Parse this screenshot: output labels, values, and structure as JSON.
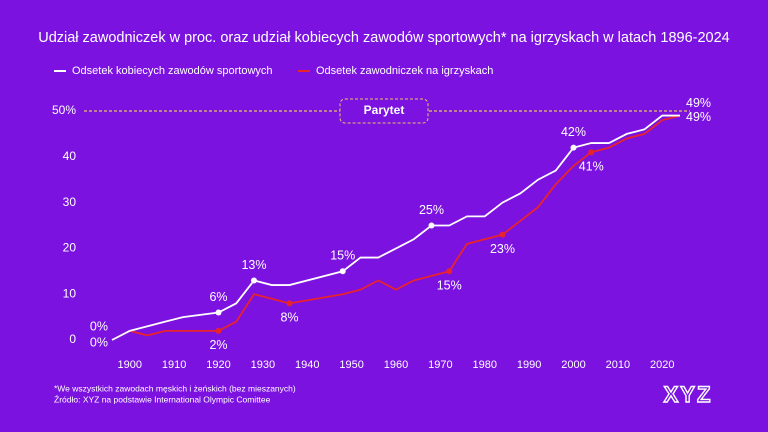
{
  "chart_data": {
    "type": "line",
    "title": "Udział zawodniczek w proc. oraz udział kobiecych zawodów sportowych* na igrzyskach w latach 1896-2024",
    "x": [
      1896,
      1900,
      1904,
      1908,
      1912,
      1920,
      1924,
      1928,
      1932,
      1936,
      1948,
      1952,
      1956,
      1960,
      1964,
      1968,
      1972,
      1976,
      1980,
      1984,
      1988,
      1992,
      1996,
      2000,
      2004,
      2008,
      2012,
      2016,
      2020,
      2024
    ],
    "series": [
      {
        "name": "Odsetek kobiecych zawodów sportowych",
        "color": "#ffffff",
        "values": [
          0,
          2,
          3,
          4,
          5,
          6,
          8,
          13,
          12,
          12,
          15,
          18,
          18,
          20,
          22,
          25,
          25,
          27,
          27,
          30,
          32,
          35,
          37,
          42,
          43,
          43,
          45,
          46,
          49,
          49
        ],
        "value_labels": [
          "0%",
          null,
          null,
          null,
          null,
          "6%",
          null,
          "13%",
          null,
          null,
          "15%",
          null,
          null,
          null,
          null,
          "25%",
          null,
          null,
          null,
          null,
          null,
          null,
          null,
          "42%",
          null,
          null,
          null,
          null,
          null,
          "49%"
        ]
      },
      {
        "name": "Odsetek zawodniczek na igrzyskach",
        "color": "#e8232c",
        "values": [
          0,
          2,
          1,
          2,
          2,
          2,
          4,
          10,
          9,
          8,
          10,
          11,
          13,
          11,
          13,
          14,
          15,
          21,
          22,
          23,
          26,
          29,
          34,
          38,
          41,
          42,
          44,
          45,
          48,
          49
        ],
        "value_labels": [
          "0%",
          null,
          null,
          null,
          null,
          "2%",
          null,
          null,
          null,
          "8%",
          null,
          null,
          null,
          null,
          null,
          null,
          "15%",
          null,
          null,
          "23%",
          null,
          null,
          null,
          null,
          "41%",
          null,
          null,
          null,
          null,
          "49%"
        ]
      }
    ],
    "xlim": [
      1896,
      2024
    ],
    "xticks": [
      1900,
      1910,
      1920,
      1930,
      1940,
      1950,
      1960,
      1970,
      1980,
      1990,
      2000,
      2010,
      2020
    ],
    "ylim": [
      0,
      50
    ],
    "yticks": [
      0,
      10,
      20,
      30,
      40,
      {
        "value": 50,
        "label": "50%"
      }
    ],
    "parity": {
      "value": 50,
      "label": "Parytet",
      "color": "#e8c36a"
    },
    "footnote": "*We wszystkich zawodach męskich i żeńskich (bez mieszanych)",
    "source": "Źródło: XYZ na podstawie International Olympic Comittee",
    "logo": "XYZ"
  }
}
